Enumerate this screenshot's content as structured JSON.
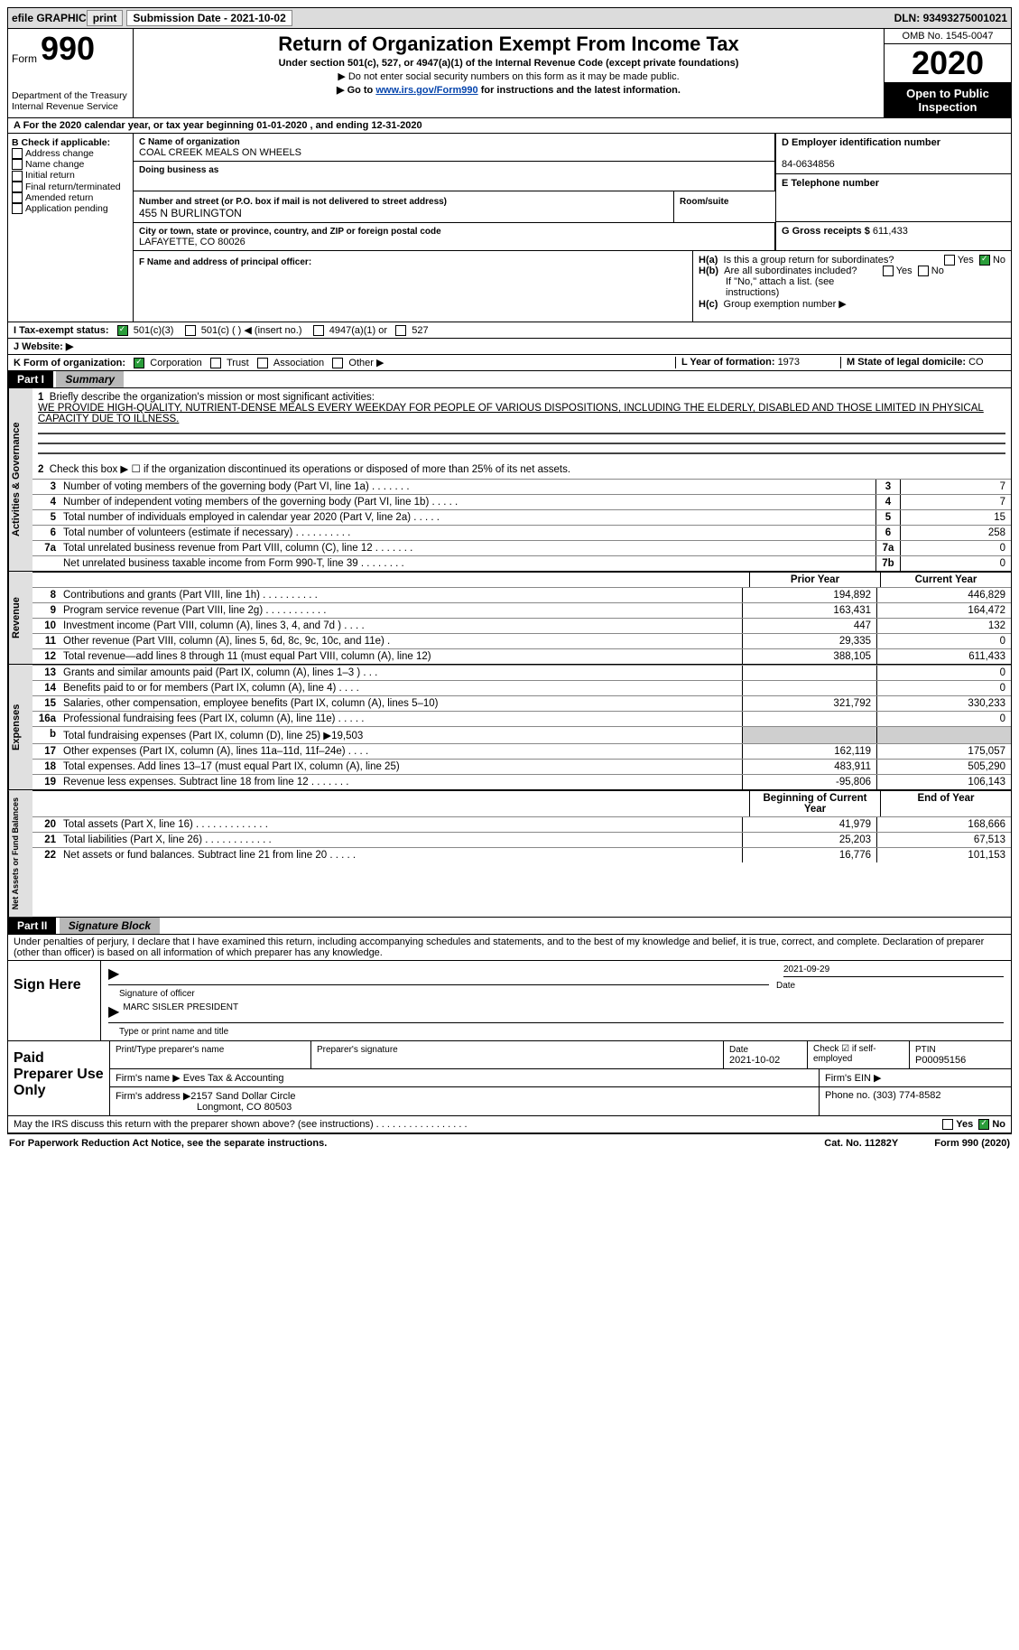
{
  "topbar": {
    "efile": "efile GRAPHIC",
    "print": "print",
    "sub_label": "Submission Date - ",
    "sub_date": "2021-10-02",
    "dln_label": "DLN: ",
    "dln": "93493275001021"
  },
  "header": {
    "form_word": "Form",
    "form_num": "990",
    "dept1": "Department of the Treasury",
    "dept2": "Internal Revenue Service",
    "title": "Return of Organization Exempt From Income Tax",
    "sub": "Under section 501(c), 527, or 4947(a)(1) of the Internal Revenue Code (except private foundations)",
    "note1": "▶ Do not enter social security numbers on this form as it may be made public.",
    "note2_pre": "▶ Go to ",
    "note2_link": "www.irs.gov/Form990",
    "note2_post": " for instructions and the latest information.",
    "omb": "OMB No. 1545-0047",
    "year": "2020",
    "otp": "Open to Public Inspection"
  },
  "a": {
    "text": "A For the 2020 calendar year, or tax year beginning 01-01-2020   , and ending 12-31-2020"
  },
  "b": {
    "label": "B Check if applicable:",
    "items": [
      "Address change",
      "Name change",
      "Initial return",
      "Final return/terminated",
      "Amended return",
      "Application pending"
    ]
  },
  "c": {
    "name_label": "C Name of organization",
    "name": "COAL CREEK MEALS ON WHEELS",
    "dba_label": "Doing business as",
    "addr_label": "Number and street (or P.O. box if mail is not delivered to street address)",
    "room_label": "Room/suite",
    "addr": "455 N BURLINGTON",
    "city_label": "City or town, state or province, country, and ZIP or foreign postal code",
    "city": "LAFAYETTE, CO  80026"
  },
  "d": {
    "label": "D Employer identification number",
    "value": "84-0634856"
  },
  "e": {
    "label": "E Telephone number",
    "value": ""
  },
  "g": {
    "label": "G Gross receipts $ ",
    "value": "611,433"
  },
  "f": {
    "label": "F  Name and address of principal officer:",
    "value": ""
  },
  "h": {
    "a": "Is this a group return for subordinates?",
    "b": "Are all subordinates included?",
    "b_note": "If \"No,\" attach a list. (see instructions)",
    "c": "Group exemption number ▶",
    "yes": "Yes",
    "no": "No"
  },
  "i": {
    "label": "I   Tax-exempt status:",
    "o1": "501(c)(3)",
    "o2": "501(c) (  ) ◀ (insert no.)",
    "o3": "4947(a)(1) or",
    "o4": "527"
  },
  "j": {
    "label": "J   Website: ▶"
  },
  "k": {
    "label": "K Form of organization:",
    "o1": "Corporation",
    "o2": "Trust",
    "o3": "Association",
    "o4": "Other ▶"
  },
  "l": {
    "label": "L Year of formation: ",
    "value": "1973"
  },
  "m": {
    "label": "M State of legal domicile: ",
    "value": "CO"
  },
  "part1": {
    "hdr": "Part I",
    "title": "Summary",
    "q1_label": "1",
    "q1": "Briefly describe the organization's mission or most significant activities:",
    "q1_val": "WE PROVIDE HIGH-QUALITY, NUTRIENT-DENSE MEALS EVERY WEEKDAY FOR PEOPLE OF VARIOUS DISPOSITIONS, INCLUDING THE ELDERLY, DISABLED AND THOSE LIMITED IN PHYSICAL CAPACITY DUE TO ILLNESS.",
    "q2": "Check this box ▶ ☐  if the organization discontinued its operations or disposed of more than 25% of its net assets.",
    "side_a": "Activities & Governance",
    "side_r": "Revenue",
    "side_e": "Expenses",
    "side_n": "Net Assets or Fund Balances",
    "col_prior": "Prior Year",
    "col_curr": "Current Year",
    "col_begin": "Beginning of Current Year",
    "col_end": "End of Year",
    "rows_gov": [
      {
        "n": "3",
        "t": "Number of voting members of the governing body (Part VI, line 1a)  .   .   .   .   .   .   .",
        "b": "3",
        "v": "7"
      },
      {
        "n": "4",
        "t": "Number of independent voting members of the governing body (Part VI, line 1b)   .   .   .   .   .",
        "b": "4",
        "v": "7"
      },
      {
        "n": "5",
        "t": "Total number of individuals employed in calendar year 2020 (Part V, line 2a)   .   .   .   .   .",
        "b": "5",
        "v": "15"
      },
      {
        "n": "6",
        "t": "Total number of volunteers (estimate if necessary)   .   .   .   .   .   .   .   .   .   .",
        "b": "6",
        "v": "258"
      },
      {
        "n": "7a",
        "t": "Total unrelated business revenue from Part VIII, column (C), line 12   .   .   .   .   .   .   .",
        "b": "7a",
        "v": "0"
      },
      {
        "n": "",
        "t": "Net unrelated business taxable income from Form 990-T, line 39   .   .   .   .   .   .   .   .",
        "b": "7b",
        "v": "0"
      }
    ],
    "rows_rev": [
      {
        "n": "8",
        "t": "Contributions and grants (Part VIII, line 1h)   .   .   .   .   .   .   .   .   .   .",
        "p": "194,892",
        "c": "446,829"
      },
      {
        "n": "9",
        "t": "Program service revenue (Part VIII, line 2g)   .   .   .   .   .   .   .   .   .   .   .",
        "p": "163,431",
        "c": "164,472"
      },
      {
        "n": "10",
        "t": "Investment income (Part VIII, column (A), lines 3, 4, and 7d )   .   .   .   .",
        "p": "447",
        "c": "132"
      },
      {
        "n": "11",
        "t": "Other revenue (Part VIII, column (A), lines 5, 6d, 8c, 9c, 10c, and 11e)   .",
        "p": "29,335",
        "c": "0"
      },
      {
        "n": "12",
        "t": "Total revenue—add lines 8 through 11 (must equal Part VIII, column (A), line 12)",
        "p": "388,105",
        "c": "611,433"
      }
    ],
    "rows_exp": [
      {
        "n": "13",
        "t": "Grants and similar amounts paid (Part IX, column (A), lines 1–3 )   .   .   .",
        "p": "",
        "c": "0"
      },
      {
        "n": "14",
        "t": "Benefits paid to or for members (Part IX, column (A), line 4)   .   .   .   .",
        "p": "",
        "c": "0"
      },
      {
        "n": "15",
        "t": "Salaries, other compensation, employee benefits (Part IX, column (A), lines 5–10)",
        "p": "321,792",
        "c": "330,233"
      },
      {
        "n": "16a",
        "t": "Professional fundraising fees (Part IX, column (A), line 11e)   .   .   .   .   .",
        "p": "",
        "c": "0"
      },
      {
        "n": "b",
        "t": "Total fundraising expenses (Part IX, column (D), line 25) ▶19,503",
        "p": "__SHADE__",
        "c": "__SHADE__"
      },
      {
        "n": "17",
        "t": "Other expenses (Part IX, column (A), lines 11a–11d, 11f–24e)    .   .   .   .",
        "p": "162,119",
        "c": "175,057"
      },
      {
        "n": "18",
        "t": "Total expenses. Add lines 13–17 (must equal Part IX, column (A), line 25)",
        "p": "483,911",
        "c": "505,290"
      },
      {
        "n": "19",
        "t": "Revenue less expenses. Subtract line 18 from line 12  .   .   .   .   .   .   .",
        "p": "-95,806",
        "c": "106,143"
      }
    ],
    "rows_net": [
      {
        "n": "20",
        "t": "Total assets (Part X, line 16)   .   .   .   .   .   .   .   .   .   .   .   .   .",
        "p": "41,979",
        "c": "168,666"
      },
      {
        "n": "21",
        "t": "Total liabilities (Part X, line 26)   .   .   .   .   .   .   .   .   .   .   .   .",
        "p": "25,203",
        "c": "67,513"
      },
      {
        "n": "22",
        "t": "Net assets or fund balances. Subtract line 21 from line 20   .   .   .   .   .",
        "p": "16,776",
        "c": "101,153"
      }
    ]
  },
  "part2": {
    "hdr": "Part II",
    "title": "Signature Block",
    "penalty": "Under penalties of perjury, I declare that I have examined this return, including accompanying schedules and statements, and to the best of my knowledge and belief, it is true, correct, and complete. Declaration of preparer (other than officer) is based on all information of which preparer has any knowledge.",
    "sign_here": "Sign Here",
    "sig_officer": "Signature of officer",
    "sig_date_label": "Date",
    "sig_date": "2021-09-29",
    "sig_name": "MARC SISLER  PRESIDENT",
    "sig_type": "Type or print name and title",
    "paid": "Paid Preparer Use Only",
    "pp_name_label": "Print/Type preparer's name",
    "pp_sig_label": "Preparer's signature",
    "pp_date_label": "Date",
    "pp_date": "2021-10-02",
    "pp_check": "Check ☑ if self-employed",
    "pp_ptin_label": "PTIN",
    "pp_ptin": "P00095156",
    "firm_name_label": "Firm's name   ▶ ",
    "firm_name": "Eves Tax & Accounting",
    "firm_ein_label": "Firm's EIN ▶",
    "firm_addr_label": "Firm's address ▶",
    "firm_addr": "2157 Sand Dollar Circle",
    "firm_city": "Longmont, CO  80503",
    "firm_phone_label": "Phone no. ",
    "firm_phone": "(303) 774-8582",
    "discuss": "May the IRS discuss this return with the preparer shown above? (see instructions)   .   .   .   .   .   .   .   .   .   .   .   .   .   .   .   .   .",
    "discuss_yes": "Yes",
    "discuss_no": "No"
  },
  "foot": {
    "pra": "For Paperwork Reduction Act Notice, see the separate instructions.",
    "cat": "Cat. No. 11282Y",
    "form": "Form 990 (2020)"
  },
  "colors": {
    "topbar_bg": "#dcdcdc",
    "part_hdr_bg": "#000000",
    "part_title_bg": "#b8b8b8",
    "shade": "#cfcfcf",
    "link": "#0645ad"
  }
}
